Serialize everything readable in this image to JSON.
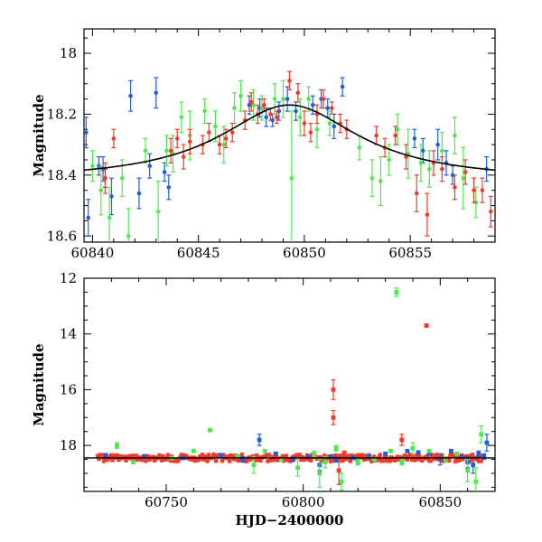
{
  "colors": {
    "blue": "#1f5fd6",
    "green": "#4ee84e",
    "red": "#f23a2a",
    "model": "#000000",
    "axes": "#000000"
  },
  "chart_data": [
    {
      "type": "scatter",
      "title": "",
      "xlabel": "",
      "ylabel": "Magnitude",
      "xlim": [
        60839.6,
        60859.0
      ],
      "ylim": [
        18.62,
        17.92
      ],
      "y_inverted": true,
      "xticks": [
        60840,
        60845,
        60850,
        60855
      ],
      "yticks": [
        18.0,
        18.2,
        18.4,
        18.6
      ],
      "xtick_labels": [
        "60840",
        "60845",
        "60850",
        "60855"
      ],
      "ytick_labels": [
        "18",
        "18.2",
        "18.4",
        "18.6"
      ],
      "model_curve": {
        "baseline": 18.42,
        "peak": 18.17,
        "t0": 60849.3,
        "tE": 4.0
      },
      "series": [
        {
          "color": "blue",
          "x": [
            60839.7,
            60839.8,
            60840.3,
            60840.5,
            60840.6,
            60840.9,
            60841.8,
            60842.2,
            60842.7,
            60843.0,
            60843.4,
            60843.6,
            60847.4,
            60847.9,
            60848.2,
            60848.5,
            60848.8,
            60849.2,
            60849.6,
            60850.4,
            60850.8,
            60851.1,
            60851.4,
            60851.8,
            60855.2,
            60855.6,
            60856.3,
            60856.7,
            60857.0,
            60858.6
          ],
          "y": [
            18.26,
            18.54,
            18.37,
            18.38,
            18.41,
            18.47,
            18.14,
            18.46,
            18.37,
            18.13,
            18.39,
            18.44,
            18.17,
            18.18,
            18.21,
            18.22,
            18.19,
            18.15,
            18.19,
            18.17,
            18.15,
            18.18,
            18.24,
            18.11,
            18.28,
            18.32,
            18.3,
            18.36,
            18.4,
            18.38
          ],
          "err": [
            0.05,
            0.06,
            0.03,
            0.04,
            0.03,
            0.06,
            0.05,
            0.05,
            0.04,
            0.05,
            0.03,
            0.04,
            0.03,
            0.03,
            0.03,
            0.02,
            0.03,
            0.04,
            0.03,
            0.03,
            0.03,
            0.03,
            0.04,
            0.03,
            0.03,
            0.04,
            0.05,
            0.04,
            0.03,
            0.04
          ]
        },
        {
          "color": "green",
          "x": [
            60840.0,
            60840.4,
            60840.8,
            60841.4,
            60841.7,
            60842.5,
            60843.1,
            60843.5,
            60843.8,
            60844.2,
            60844.6,
            60845.3,
            60845.8,
            60846.2,
            60846.7,
            60847.0,
            60847.6,
            60848.0,
            60848.6,
            60849.0,
            60849.4,
            60849.8,
            60850.2,
            60850.6,
            60851.2,
            60852.6,
            60853.2,
            60853.6,
            60854.0,
            60854.4,
            60854.9,
            60855.5,
            60855.9,
            60856.5,
            60857.1,
            60857.5,
            60858.1
          ],
          "y": [
            18.37,
            18.45,
            18.54,
            18.41,
            18.6,
            18.32,
            18.52,
            18.32,
            18.33,
            18.21,
            18.27,
            18.19,
            18.24,
            18.3,
            18.18,
            18.14,
            18.17,
            18.18,
            18.15,
            18.15,
            18.41,
            18.21,
            18.15,
            18.25,
            18.23,
            18.31,
            18.41,
            18.42,
            18.35,
            18.25,
            18.33,
            18.36,
            18.38,
            18.32,
            18.27,
            18.41,
            18.49
          ],
          "err": [
            0.05,
            0.08,
            0.1,
            0.06,
            0.09,
            0.04,
            0.1,
            0.05,
            0.06,
            0.05,
            0.08,
            0.04,
            0.05,
            0.06,
            0.05,
            0.05,
            0.05,
            0.04,
            0.05,
            0.06,
            0.22,
            0.06,
            0.04,
            0.06,
            0.04,
            0.04,
            0.06,
            0.08,
            0.05,
            0.05,
            0.08,
            0.06,
            0.06,
            0.06,
            0.06,
            0.1,
            0.05
          ]
        },
        {
          "color": "red",
          "x": [
            60840.6,
            60841.0,
            60843.7,
            60844.0,
            60844.3,
            60844.6,
            60845.2,
            60845.5,
            60846.0,
            60846.3,
            60846.6,
            60847.2,
            60847.5,
            60847.8,
            60848.1,
            60848.4,
            60848.7,
            60849.3,
            60849.7,
            60850.0,
            60850.3,
            60850.6,
            60850.9,
            60851.3,
            60851.7,
            60852.0,
            60853.4,
            60853.8,
            60854.3,
            60854.8,
            60855.3,
            60855.8,
            60856.1,
            60856.5,
            60857.1,
            60857.6,
            60858.0,
            60858.4,
            60858.8
          ],
          "y": [
            18.41,
            18.28,
            18.32,
            18.28,
            18.34,
            18.29,
            18.3,
            18.26,
            18.3,
            18.28,
            18.26,
            18.22,
            18.16,
            18.2,
            18.17,
            18.2,
            18.21,
            18.09,
            18.13,
            18.23,
            18.26,
            18.2,
            18.15,
            18.18,
            18.23,
            18.25,
            18.27,
            18.31,
            18.27,
            18.34,
            18.46,
            18.53,
            18.36,
            18.38,
            18.44,
            18.39,
            18.45,
            18.45,
            18.52
          ],
          "err": [
            0.05,
            0.03,
            0.04,
            0.03,
            0.04,
            0.04,
            0.03,
            0.03,
            0.03,
            0.03,
            0.03,
            0.03,
            0.03,
            0.03,
            0.02,
            0.02,
            0.02,
            0.03,
            0.03,
            0.04,
            0.03,
            0.03,
            0.03,
            0.02,
            0.03,
            0.03,
            0.03,
            0.03,
            0.03,
            0.04,
            0.06,
            0.07,
            0.04,
            0.04,
            0.04,
            0.04,
            0.04,
            0.04,
            0.05
          ]
        }
      ]
    },
    {
      "type": "scatter",
      "title": "",
      "xlabel": "HJD−2400000",
      "ylabel": "Magnitude",
      "xlim": [
        60720,
        60870
      ],
      "ylim": [
        19.65,
        12.0
      ],
      "y_inverted": true,
      "xticks": [
        60750,
        60800,
        60850
      ],
      "yticks": [
        12,
        14,
        16,
        18
      ],
      "xtick_labels": [
        "60750",
        "60800",
        "60850"
      ],
      "ytick_labels": [
        "12",
        "14",
        "16",
        "18"
      ],
      "baseline_mag": 18.45,
      "series": [
        {
          "color": "blue",
          "x": [
            60728,
            60742,
            60756,
            60770,
            60778,
            60784,
            60790,
            60796,
            60802,
            60806,
            60810,
            60812,
            60818,
            60824,
            60830,
            60838,
            60842,
            60846,
            60850,
            60854,
            60858,
            60860,
            60862,
            60864,
            60866,
            60867
          ],
          "y": [
            18.35,
            18.4,
            18.45,
            18.35,
            18.5,
            17.8,
            18.3,
            18.5,
            18.4,
            18.7,
            18.4,
            18.5,
            18.45,
            18.4,
            18.3,
            18.2,
            18.25,
            18.3,
            18.5,
            18.2,
            18.4,
            18.6,
            18.7,
            18.3,
            18.4,
            17.9
          ],
          "err": [
            0.05,
            0.05,
            0.05,
            0.05,
            0.1,
            0.2,
            0.05,
            0.08,
            0.05,
            0.2,
            0.05,
            0.1,
            0.05,
            0.05,
            0.05,
            0.05,
            0.05,
            0.05,
            0.2,
            0.05,
            0.05,
            0.2,
            0.3,
            0.1,
            0.1,
            0.3
          ]
        },
        {
          "color": "green",
          "x": [
            60732,
            60738,
            60752,
            60760,
            60766,
            60776,
            60782,
            60786,
            60792,
            60798,
            60804,
            60806,
            60808,
            60812,
            60814,
            60820,
            60826,
            60832,
            60834,
            60836,
            60840,
            60846,
            60852,
            60856,
            60860,
            60863,
            60865
          ],
          "y": [
            18.0,
            18.6,
            18.45,
            18.2,
            17.45,
            18.4,
            18.7,
            18.2,
            18.5,
            18.8,
            18.3,
            19.0,
            18.6,
            18.1,
            19.3,
            18.6,
            18.5,
            18.2,
            12.5,
            18.6,
            18.1,
            18.2,
            18.5,
            18.3,
            18.9,
            19.3,
            17.6
          ],
          "err": [
            0.1,
            0.05,
            0.05,
            0.05,
            0.05,
            0.05,
            0.3,
            0.05,
            0.05,
            0.3,
            0.1,
            0.5,
            0.2,
            0.1,
            0.3,
            0.1,
            0.05,
            0.05,
            0.15,
            0.1,
            0.2,
            0.05,
            0.1,
            0.05,
            0.4,
            0.5,
            0.3
          ]
        },
        {
          "color": "red",
          "x": [
            60811,
            60811,
            60836,
            60845,
            60813,
            60815
          ],
          "y": [
            16.0,
            17.0,
            17.8,
            13.7,
            18.9,
            18.3
          ],
          "err": [
            0.35,
            0.25,
            0.2,
            0.05,
            0.5,
            0.1
          ]
        }
      ],
      "dense_band": {
        "color": "red",
        "x_range": [
          60725,
          60866
        ],
        "center_mag": 18.45,
        "scatter_mag": 0.12
      }
    }
  ]
}
